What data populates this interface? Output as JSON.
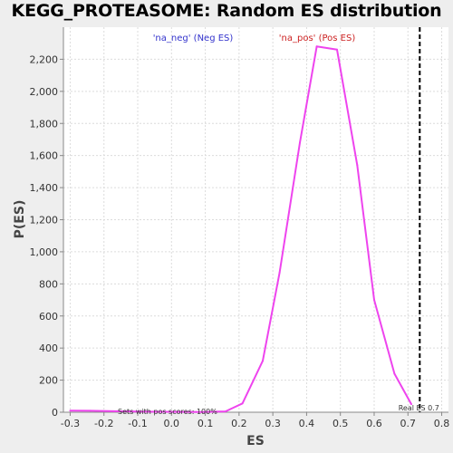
{
  "chart_data": {
    "type": "line",
    "title": "KEGG_PROTEASOME: Random ES distribution",
    "xlabel": "ES",
    "ylabel": "P(ES)",
    "xlim": [
      -0.32,
      0.82
    ],
    "ylim": [
      0,
      2400
    ],
    "x_ticks": [
      -0.3,
      -0.2,
      -0.1,
      0.0,
      0.1,
      0.2,
      0.3,
      0.4,
      0.5,
      0.6,
      0.7,
      0.8
    ],
    "x_tick_labels": [
      "-0.3",
      "-0.2",
      "-0.1",
      "0.0",
      "0.1",
      "0.2",
      "0.3",
      "0.4",
      "0.5",
      "0.6",
      "0.7",
      "0.8"
    ],
    "y_ticks": [
      0,
      200,
      400,
      600,
      800,
      1000,
      1200,
      1400,
      1600,
      1800,
      2000,
      2200
    ],
    "y_tick_labels": [
      "0",
      "200",
      "400",
      "600",
      "800",
      "1,000",
      "1,200",
      "1,400",
      "1,600",
      "1,800",
      "2,000",
      "2,200"
    ],
    "grid": true,
    "legend_placement": "top",
    "legend": [
      {
        "label": "'na_neg' (Neg ES)",
        "color": "#3333cc"
      },
      {
        "label": "'na_pos' (Pos ES)",
        "color": "#cc2222"
      }
    ],
    "series": [
      {
        "color": "#ee44ee",
        "x": [
          -0.3,
          -0.24,
          -0.17,
          -0.1,
          -0.04,
          0.03,
          0.09,
          0.16,
          0.21,
          0.27,
          0.32,
          0.38,
          0.43,
          0.49,
          0.55,
          0.6,
          0.66,
          0.71
        ],
        "y": [
          10,
          9,
          6,
          4,
          3,
          2,
          1,
          5,
          55,
          320,
          870,
          1680,
          2280,
          2260,
          1540,
          700,
          240,
          50
        ]
      }
    ],
    "vline": {
      "x": 0.735,
      "label": "Real ES 0.7",
      "color": "#000000",
      "style": "dashed"
    },
    "annotation": "Sets with pos scores: 100%"
  }
}
